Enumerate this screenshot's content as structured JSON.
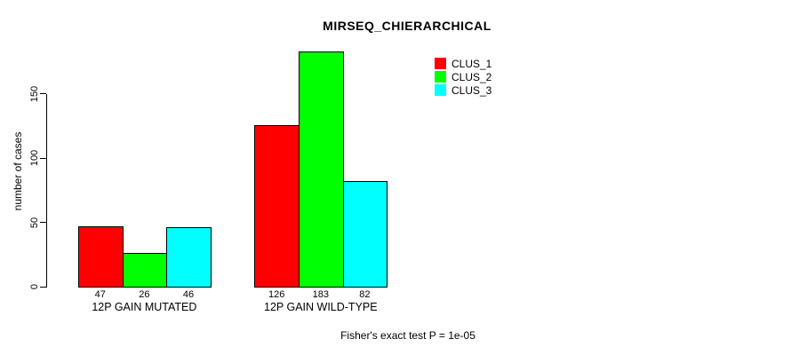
{
  "chart_data": {
    "type": "bar",
    "title": "MIRSEQ_CHIERARCHICAL",
    "categories": [
      "12P GAIN MUTATED",
      "12P GAIN WILD-TYPE"
    ],
    "series": [
      {
        "name": "CLUS_1",
        "color": "#FF0000",
        "values": [
          47,
          126
        ]
      },
      {
        "name": "CLUS_2",
        "color": "#00FF00",
        "values": [
          26,
          183
        ]
      },
      {
        "name": "CLUS_3",
        "color": "#00FFFF",
        "values": [
          46,
          82
        ]
      }
    ],
    "ylabel": "number of cases",
    "xlabel": "",
    "yticks": [
      0,
      50,
      100,
      150
    ],
    "ylim": [
      0,
      185
    ],
    "bar_value_labels": true,
    "grid": false,
    "legend_position": "top-right",
    "annotation": "Fisher's exact test P = 1e-05",
    "axis_color": "#000000",
    "background_color": "#FFFFFF"
  }
}
